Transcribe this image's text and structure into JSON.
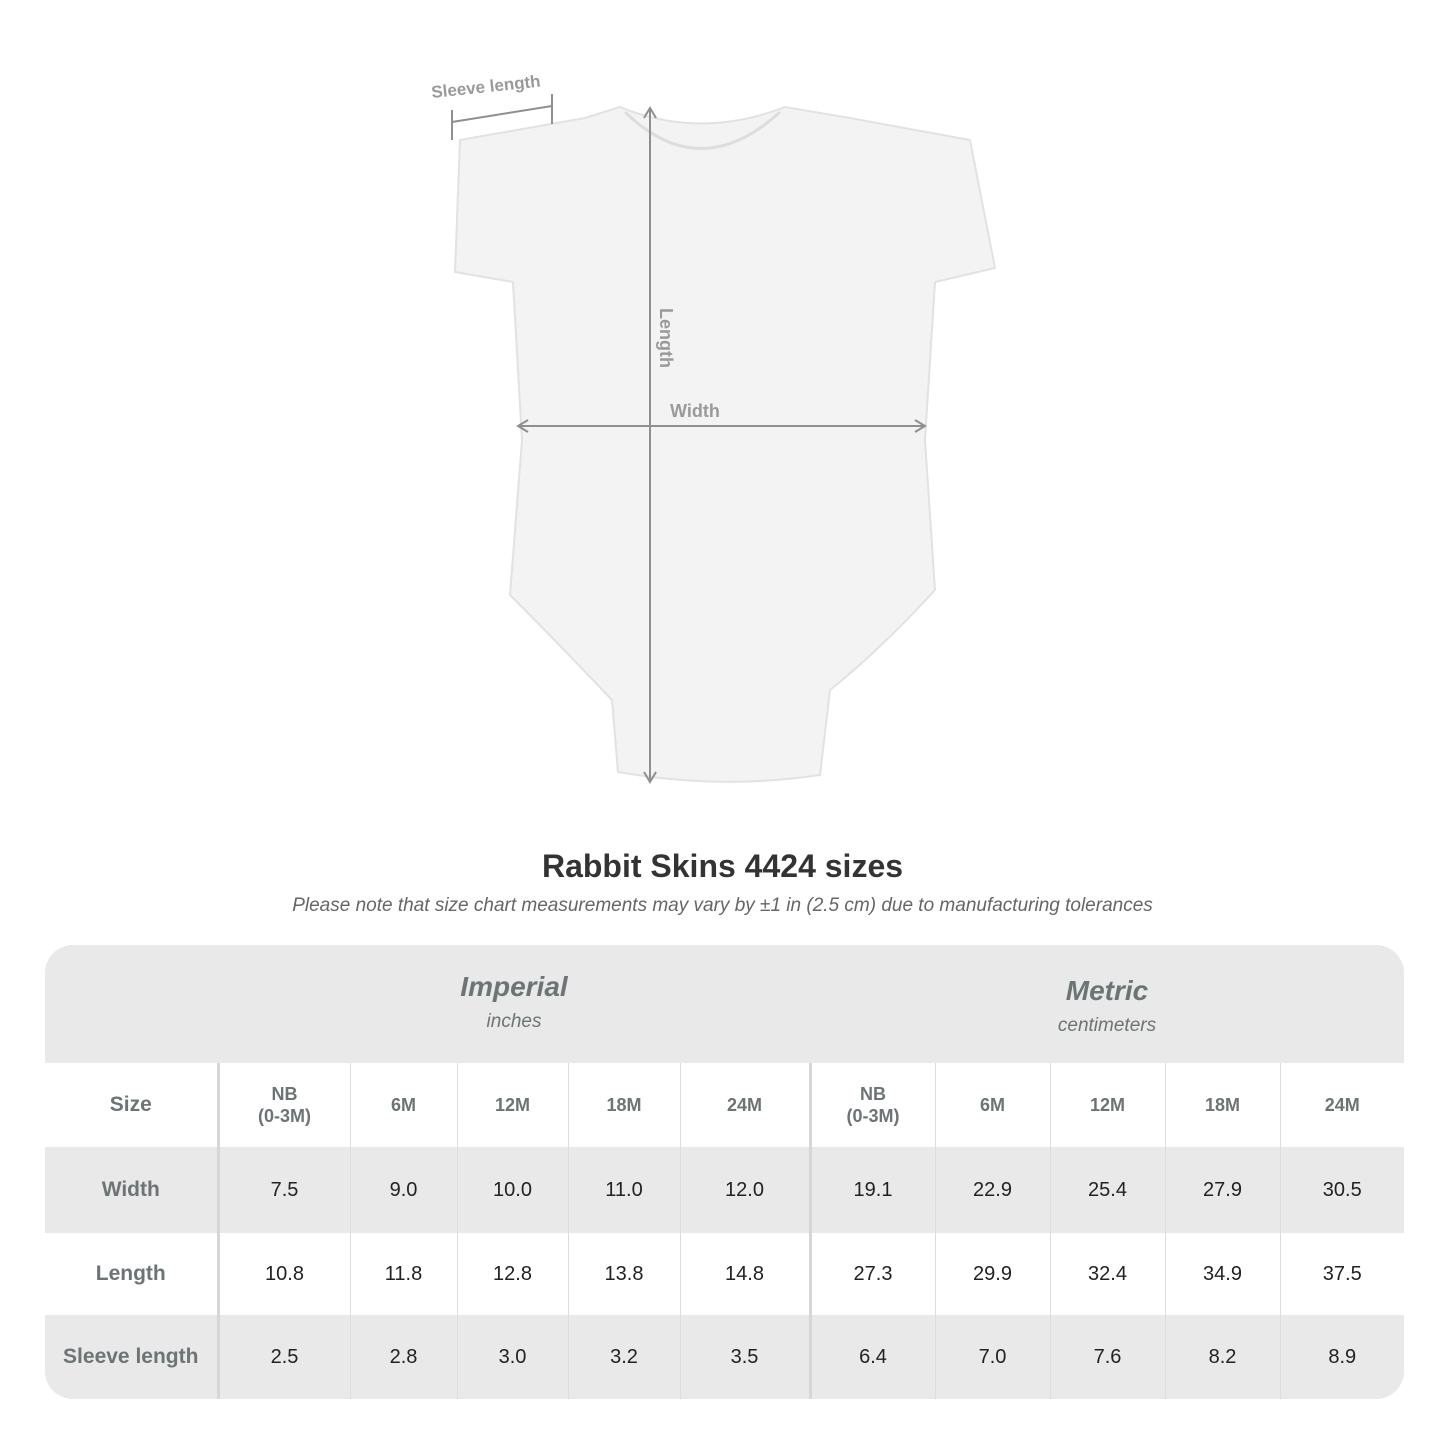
{
  "diagram": {
    "labels": {
      "sleeve": "Sleeve length",
      "length": "Length",
      "width": "Width"
    },
    "garment_color": "#f3f3f3"
  },
  "title": "Rabbit Skins 4424 sizes",
  "subtitle": "Please note that size chart measurements may vary by ±1 in (2.5 cm) due to manufacturing tolerances",
  "table": {
    "imperial": {
      "title": "Imperial",
      "unit": "inches"
    },
    "metric": {
      "title": "Metric",
      "unit": "centimeters"
    },
    "size_label": "Size",
    "sizes": [
      "NB\n(0-3M)",
      "6M",
      "12M",
      "18M",
      "24M"
    ],
    "rows": [
      {
        "label": "Width",
        "imperial": [
          "7.5",
          "9.0",
          "10.0",
          "11.0",
          "12.0"
        ],
        "metric": [
          "19.1",
          "22.9",
          "25.4",
          "27.9",
          "30.5"
        ]
      },
      {
        "label": "Length",
        "imperial": [
          "10.8",
          "11.8",
          "12.8",
          "13.8",
          "14.8"
        ],
        "metric": [
          "27.3",
          "29.9",
          "32.4",
          "34.9",
          "37.5"
        ]
      },
      {
        "label": "Sleeve length",
        "imperial": [
          "2.5",
          "2.8",
          "3.0",
          "3.2",
          "3.5"
        ],
        "metric": [
          "6.4",
          "7.0",
          "7.6",
          "8.2",
          "8.9"
        ]
      }
    ]
  }
}
